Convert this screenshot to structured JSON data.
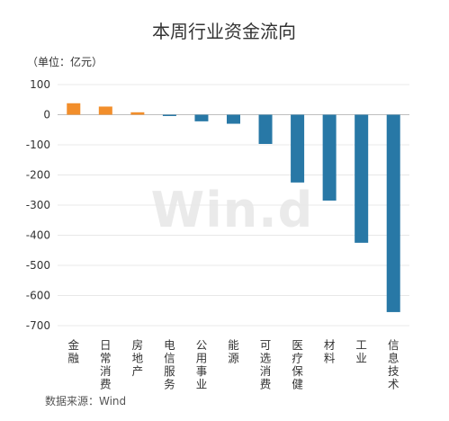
{
  "chart_data": {
    "type": "bar",
    "title": "本周行业资金流向",
    "unit_label": "（单位：亿元）",
    "categories": [
      "金融",
      "日常消费",
      "房地产",
      "电信服务",
      "公用事业",
      "能源",
      "可选消费",
      "医疗保健",
      "材料",
      "工业",
      "信息技术"
    ],
    "values": [
      38,
      27,
      8,
      -3,
      -22,
      -30,
      -97,
      -225,
      -285,
      -425,
      -655
    ],
    "ylim": [
      -700,
      100
    ],
    "yticks": [
      100,
      0,
      -100,
      -200,
      -300,
      -400,
      -500,
      -600,
      -700
    ],
    "grid": true,
    "colors": {
      "positive": "#f28e2b",
      "negative": "#2878a6"
    },
    "watermark": "Win.d",
    "source": "数据来源：Wind"
  }
}
